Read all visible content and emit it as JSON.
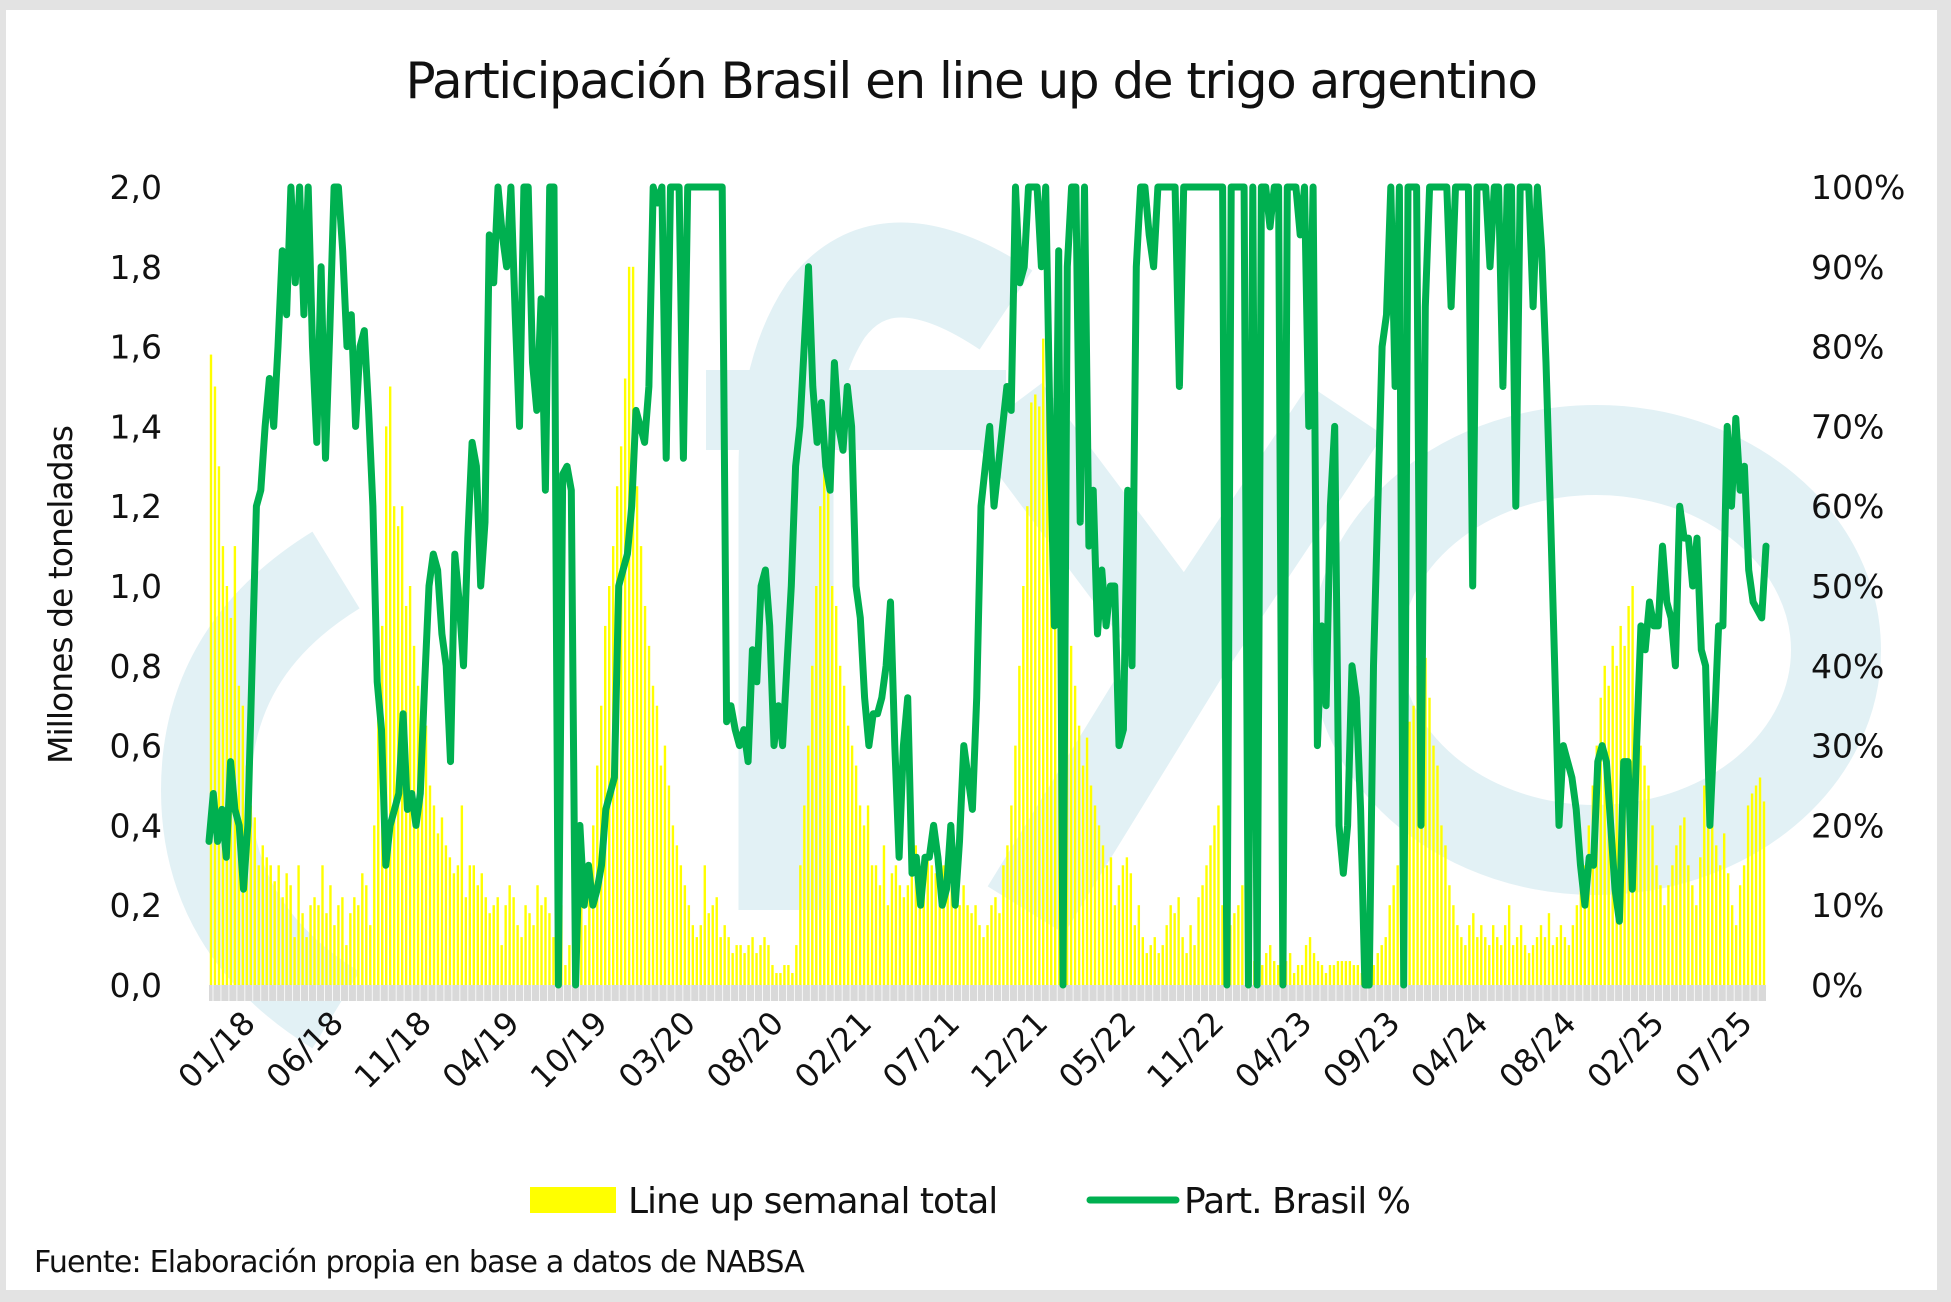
{
  "chart_data": {
    "type": "bar+line",
    "title": "Participación Brasil en line up de trigo argentino",
    "ylabel": "Millones de toneladas",
    "ylabel_right": "",
    "ylim": [
      0,
      2.0
    ],
    "ylim_right": [
      0,
      100
    ],
    "yticks": [
      "0,0",
      "0,2",
      "0,4",
      "0,6",
      "0,8",
      "1,0",
      "1,2",
      "1,4",
      "1,6",
      "1,8",
      "2,0"
    ],
    "yticks_right": [
      "0%",
      "10%",
      "20%",
      "30%",
      "40%",
      "50%",
      "60%",
      "70%",
      "80%",
      "90%",
      "100%"
    ],
    "xticks": [
      "01/18",
      "06/18",
      "11/18",
      "04/19",
      "10/19",
      "03/20",
      "08/20",
      "02/21",
      "07/21",
      "12/21",
      "05/22",
      "11/22",
      "04/23",
      "09/23",
      "04/24",
      "08/24",
      "02/25",
      "07/25"
    ],
    "x_range": [
      "01/18",
      "09/25"
    ],
    "legend": {
      "position": "bottom",
      "bar_label": "Line up semanal total",
      "line_label": "Part. Brasil %"
    },
    "source": "Fuente: Elaboración propia en base a datos de NABSA",
    "colors": {
      "bar": "#ffff00",
      "line": "#00b050",
      "axis_band": "#d9d9d9",
      "watermark": "#e2f1f5"
    },
    "grid": false,
    "series": [
      {
        "name": "Line up semanal total",
        "type": "bar",
        "axis": "left",
        "unit": "Millones de toneladas",
        "values": [
          1.58,
          1.5,
          1.3,
          1.1,
          1.0,
          0.92,
          1.1,
          0.75,
          0.7,
          0.55,
          0.45,
          0.42,
          0.3,
          0.35,
          0.32,
          0.3,
          0.26,
          0.3,
          0.22,
          0.28,
          0.25,
          0.12,
          0.3,
          0.18,
          0.12,
          0.2,
          0.22,
          0.2,
          0.3,
          0.18,
          0.25,
          0.15,
          0.2,
          0.22,
          0.1,
          0.18,
          0.22,
          0.2,
          0.28,
          0.25,
          0.15,
          0.4,
          0.7,
          0.9,
          1.4,
          1.5,
          1.2,
          1.15,
          1.2,
          0.95,
          1.0,
          0.85,
          0.75,
          0.6,
          0.65,
          0.5,
          0.45,
          0.38,
          0.42,
          0.35,
          0.32,
          0.28,
          0.3,
          0.45,
          0.22,
          0.3,
          0.3,
          0.25,
          0.28,
          0.22,
          0.18,
          0.2,
          0.22,
          0.1,
          0.2,
          0.25,
          0.22,
          0.15,
          0.12,
          0.2,
          0.18,
          0.15,
          0.25,
          0.2,
          0.22,
          0.18,
          0.12,
          0.15,
          0.2,
          0.05,
          0.1,
          0.22,
          0.28,
          0.2,
          0.15,
          0.3,
          0.4,
          0.55,
          0.7,
          0.9,
          1.0,
          1.1,
          1.25,
          1.35,
          1.52,
          1.8,
          1.8,
          1.25,
          1.1,
          0.95,
          0.85,
          0.75,
          0.7,
          0.55,
          0.6,
          0.5,
          0.4,
          0.35,
          0.3,
          0.25,
          0.2,
          0.15,
          0.12,
          0.15,
          0.3,
          0.18,
          0.2,
          0.22,
          0.12,
          0.15,
          0.12,
          0.08,
          0.1,
          0.1,
          0.08,
          0.1,
          0.12,
          0.08,
          0.1,
          0.12,
          0.1,
          0.05,
          0.03,
          0.03,
          0.05,
          0.05,
          0.03,
          0.1,
          0.3,
          0.45,
          0.6,
          0.8,
          1.0,
          1.2,
          1.3,
          1.25,
          1.0,
          0.95,
          0.8,
          0.75,
          0.65,
          0.6,
          0.55,
          0.45,
          0.4,
          0.45,
          0.3,
          0.3,
          0.25,
          0.35,
          0.2,
          0.28,
          0.3,
          0.25,
          0.22,
          0.25,
          0.3,
          0.35,
          0.28,
          0.25,
          0.32,
          0.3,
          0.28,
          0.2,
          0.3,
          0.35,
          0.25,
          0.22,
          0.2,
          0.25,
          0.2,
          0.18,
          0.2,
          0.15,
          0.12,
          0.15,
          0.2,
          0.22,
          0.18,
          0.3,
          0.35,
          0.45,
          0.6,
          0.8,
          1.0,
          1.2,
          1.46,
          1.48,
          1.45,
          1.62,
          1.74,
          1.3,
          1.4,
          1.2,
          1.1,
          0.95,
          0.85,
          0.75,
          0.65,
          0.55,
          0.62,
          0.5,
          0.45,
          0.4,
          0.35,
          0.3,
          0.32,
          0.2,
          0.25,
          0.3,
          0.32,
          0.28,
          0.15,
          0.2,
          0.12,
          0.08,
          0.1,
          0.12,
          0.08,
          0.1,
          0.15,
          0.2,
          0.18,
          0.22,
          0.12,
          0.08,
          0.15,
          0.1,
          0.22,
          0.25,
          0.3,
          0.35,
          0.4,
          0.45,
          0.2,
          0.25,
          0.15,
          0.18,
          0.2,
          0.25,
          0.1,
          0.08,
          0.06,
          0.05,
          0.05,
          0.08,
          0.1,
          0.06,
          0.05,
          0.03,
          0.06,
          0.08,
          0.03,
          0.05,
          0.05,
          0.1,
          0.12,
          0.08,
          0.06,
          0.05,
          0.03,
          0.05,
          0.05,
          0.06,
          0.06,
          0.06,
          0.06,
          0.05,
          0.05,
          0.03,
          0.03,
          0.02,
          0.05,
          0.08,
          0.1,
          0.12,
          0.2,
          0.25,
          0.3,
          0.45,
          0.58,
          0.66,
          0.7,
          0.8,
          0.75,
          0.82,
          0.72,
          0.6,
          0.55,
          0.4,
          0.35,
          0.25,
          0.2,
          0.15,
          0.12,
          0.1,
          0.15,
          0.18,
          0.12,
          0.15,
          0.12,
          0.1,
          0.15,
          0.12,
          0.1,
          0.15,
          0.2,
          0.1,
          0.12,
          0.15,
          0.1,
          0.08,
          0.1,
          0.12,
          0.15,
          0.12,
          0.18,
          0.1,
          0.12,
          0.15,
          0.12,
          0.1,
          0.15,
          0.2,
          0.25,
          0.3,
          0.4,
          0.5,
          0.6,
          0.72,
          0.8,
          0.75,
          0.85,
          0.8,
          0.9,
          0.85,
          0.95,
          1.0,
          0.7,
          0.6,
          0.55,
          0.5,
          0.4,
          0.3,
          0.25,
          0.2,
          0.25,
          0.3,
          0.35,
          0.4,
          0.42,
          0.3,
          0.25,
          0.2,
          0.32,
          0.5,
          0.55,
          0.4,
          0.35,
          0.3,
          0.38,
          0.28,
          0.2,
          0.15,
          0.25,
          0.3,
          0.45,
          0.48,
          0.5,
          0.52,
          0.46
        ]
      },
      {
        "name": "Part. Brasil %",
        "type": "line",
        "axis": "right",
        "unit": "%",
        "values": [
          18,
          24,
          18,
          22,
          16,
          28,
          22,
          20,
          12,
          20,
          40,
          60,
          62,
          70,
          76,
          70,
          80,
          92,
          84,
          100,
          88,
          100,
          84,
          100,
          80,
          68,
          90,
          66,
          82,
          100,
          100,
          92,
          80,
          84,
          70,
          80,
          82,
          72,
          60,
          38,
          32,
          15,
          20,
          22,
          24,
          34,
          22,
          24,
          20,
          24,
          38,
          50,
          54,
          52,
          44,
          40,
          28,
          54,
          48,
          40,
          56,
          68,
          65,
          50,
          58,
          94,
          88,
          100,
          94,
          90,
          100,
          84,
          70,
          100,
          100,
          78,
          72,
          86,
          62,
          100,
          100,
          0,
          64,
          65,
          62,
          0,
          20,
          10,
          15,
          10,
          12,
          15,
          22,
          24,
          26,
          50,
          52,
          54,
          60,
          72,
          70,
          68,
          75,
          100,
          98,
          100,
          66,
          100,
          100,
          100,
          66,
          100,
          100,
          100,
          100,
          100,
          100,
          100,
          100,
          100,
          33,
          35,
          32,
          30,
          32,
          28,
          42,
          38,
          50,
          52,
          45,
          30,
          35,
          30,
          40,
          50,
          65,
          70,
          80,
          90,
          75,
          68,
          73,
          65,
          62,
          78,
          70,
          67,
          75,
          70,
          50,
          46,
          36,
          30,
          34,
          34,
          36,
          40,
          48,
          30,
          16,
          30,
          36,
          14,
          16,
          10,
          16,
          16,
          20,
          16,
          10,
          12,
          20,
          10,
          18,
          30,
          26,
          22,
          36,
          60,
          65,
          70,
          60,
          65,
          70,
          75,
          72,
          100,
          88,
          90,
          100,
          100,
          100,
          90,
          100,
          70,
          45,
          92,
          0,
          90,
          100,
          100,
          58,
          100,
          55,
          62,
          44,
          52,
          45,
          50,
          50,
          30,
          32,
          62,
          40,
          90,
          100,
          100,
          94,
          90,
          100,
          100,
          100,
          100,
          100,
          75,
          100,
          100,
          100,
          100,
          100,
          100,
          100,
          100,
          100,
          100,
          0,
          100,
          100,
          100,
          100,
          0,
          100,
          0,
          100,
          100,
          95,
          100,
          100,
          0,
          100,
          100,
          100,
          94,
          100,
          70,
          100,
          30,
          45,
          35,
          60,
          70,
          20,
          14,
          20,
          40,
          36,
          22,
          0,
          0,
          40,
          60,
          80,
          84,
          100,
          75,
          100,
          0,
          100,
          100,
          100,
          20,
          85,
          100,
          100,
          100,
          100,
          100,
          85,
          100,
          100,
          100,
          100,
          50,
          100,
          100,
          100,
          90,
          100,
          100,
          75,
          100,
          100,
          60,
          100,
          100,
          100,
          85,
          100,
          92,
          78,
          60,
          40,
          20,
          30,
          28,
          26,
          22,
          15,
          10,
          16,
          15,
          28,
          30,
          28,
          20,
          12,
          8,
          28,
          28,
          12,
          30,
          45,
          42,
          48,
          45,
          45,
          55,
          48,
          46,
          40,
          60,
          56,
          56,
          50,
          56,
          42,
          40,
          20,
          32,
          45,
          45,
          70,
          60,
          71,
          62,
          65,
          52,
          48,
          47,
          46,
          55
        ]
      }
    ]
  }
}
